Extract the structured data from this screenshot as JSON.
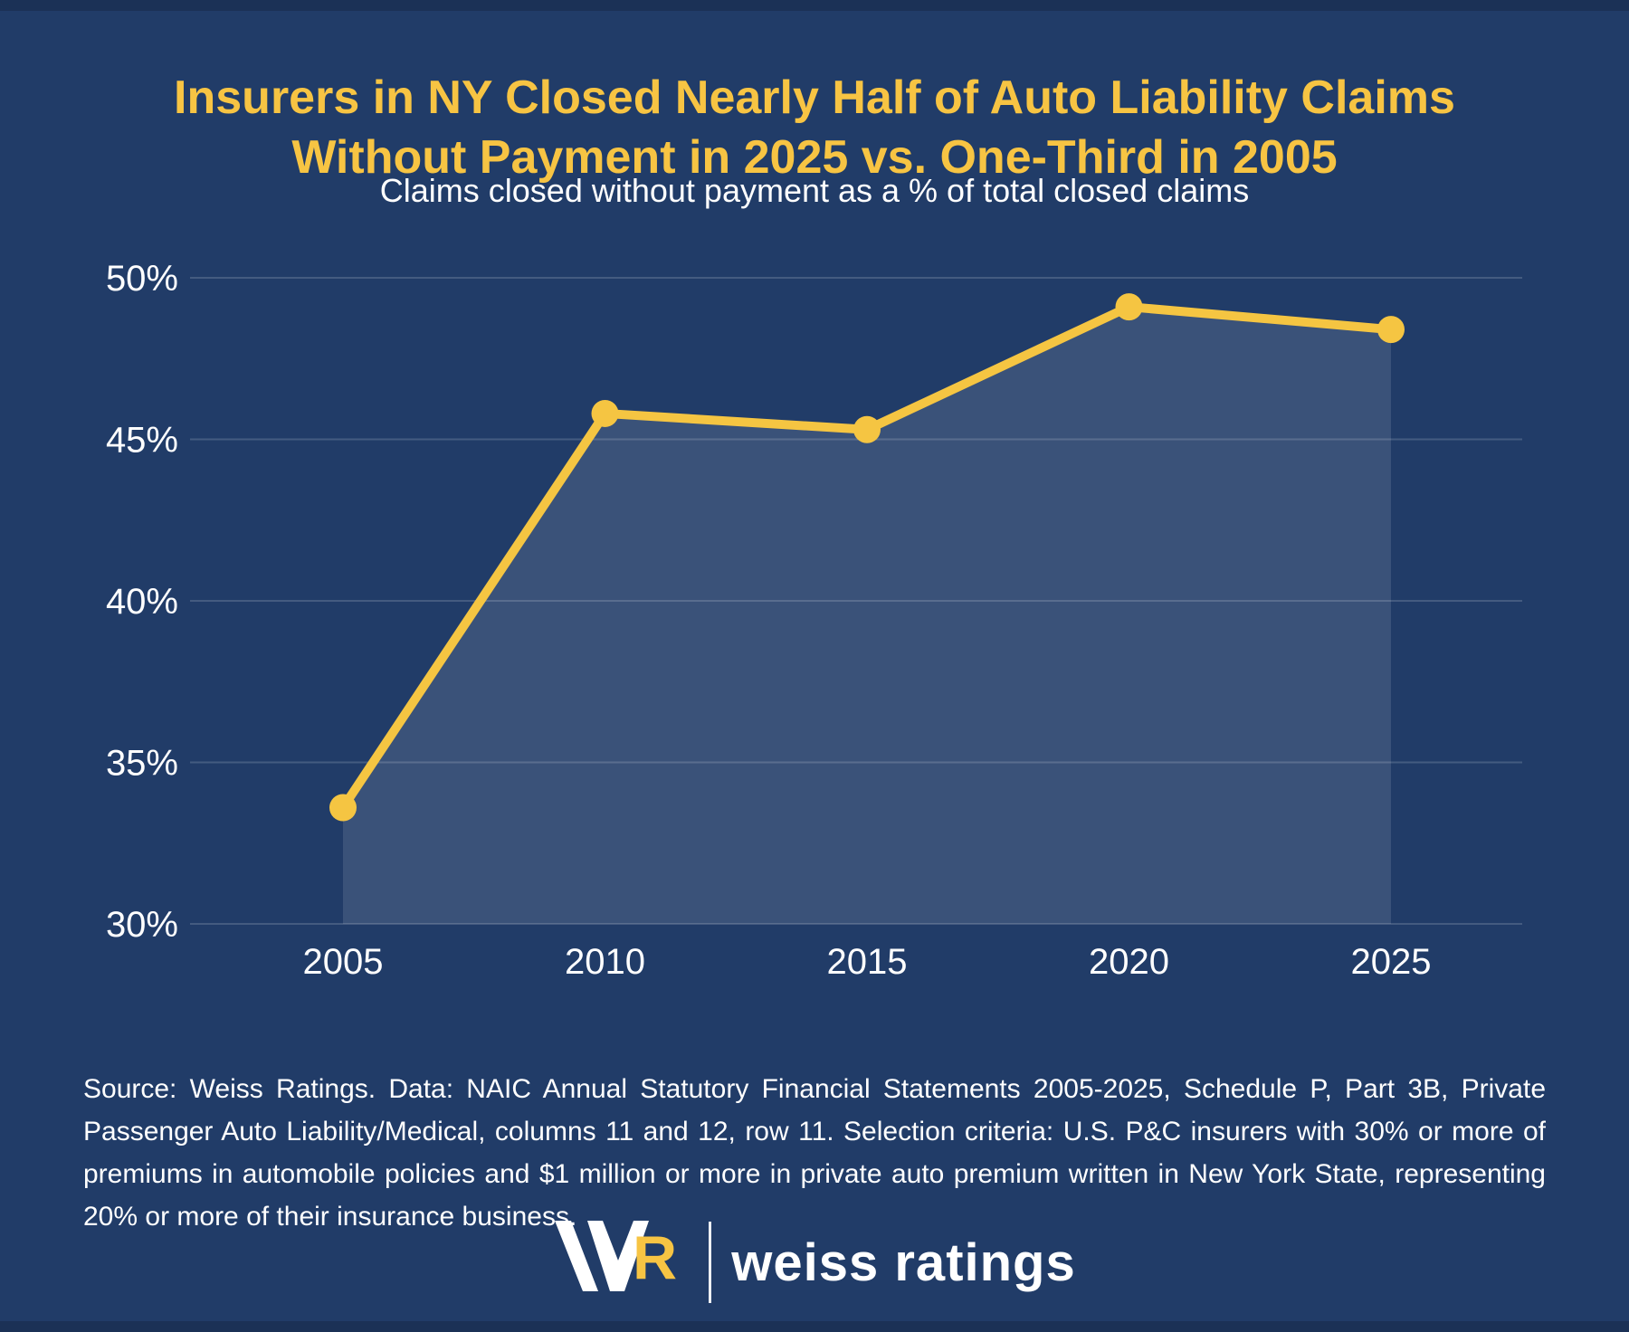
{
  "page": {
    "title_line1": "Insurers in NY Closed Nearly Half of Auto Liability Claims",
    "title_line2": "Without Payment in 2025 vs. One-Third in 2005",
    "subtitle": "Claims closed without payment as a % of total closed claims",
    "source_text": "Source: Weiss Ratings. Data: NAIC Annual Statutory Financial Statements 2005-2025, Schedule P, Part 3B, Private Passenger Auto Liability/Medical, columns 11 and 12, row 11. Selection criteria: U.S. P&C insurers with 30% or more of premiums in automobile policies and $1 million or more in private auto premium written in New York State, representing 20% or more of their insurance business.",
    "logo": {
      "monogram_r": "R",
      "wordmark": "weiss ratings"
    }
  },
  "colors": {
    "background": "#213C68",
    "edge_strip": "#1B3156",
    "accent": "#F7C443",
    "line": "#F5C542",
    "text": "#FFFFFF",
    "gridline": "rgba(255,255,255,0.16)",
    "area_fill": "rgba(255,255,255,0.115)"
  },
  "chart_data": {
    "type": "area",
    "title": "Insurers in NY Closed Nearly Half of Auto Liability Claims Without Payment in 2025 vs. One-Third in 2005",
    "subtitle": "Claims closed without payment as a % of total closed claims",
    "categories": [
      "2005",
      "2010",
      "2015",
      "2020",
      "2025"
    ],
    "series": [
      {
        "name": "Claims closed without payment as % of total closed claims",
        "values": [
          33.6,
          45.8,
          45.3,
          49.1,
          48.4
        ]
      }
    ],
    "y_ticks": [
      30,
      35,
      40,
      45,
      50
    ],
    "y_tick_labels": [
      "30%",
      "35%",
      "40%",
      "45%",
      "50%"
    ],
    "ylim": [
      30,
      50
    ],
    "xlabel": "",
    "ylabel": "",
    "grid": "horizontal",
    "legend": "none",
    "marker": "circle"
  }
}
